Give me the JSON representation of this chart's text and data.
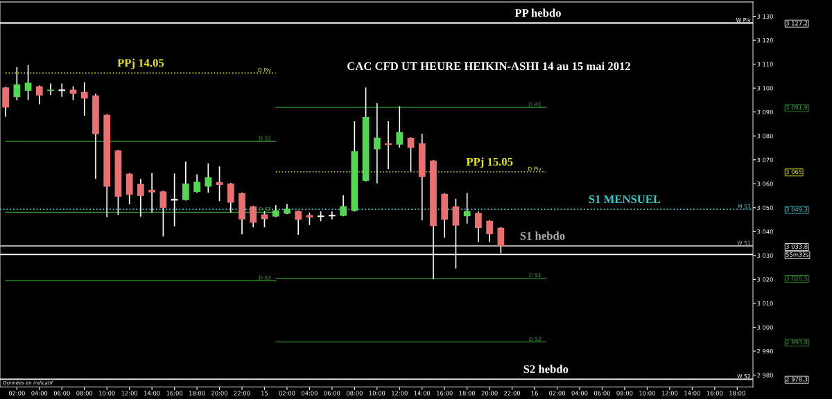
{
  "chart_data": {
    "type": "candlestick",
    "title": "CAC CFD UT HEURE HEIKIN-ASHI 14 au 15 mai 2012",
    "x": [
      "2012-05-14T01:00",
      "2012-05-14T02:00",
      "2012-05-14T03:00",
      "2012-05-14T04:00",
      "2012-05-14T05:00",
      "2012-05-14T06:00",
      "2012-05-14T07:00",
      "2012-05-14T08:00",
      "2012-05-14T09:00",
      "2012-05-14T10:00",
      "2012-05-14T11:00",
      "2012-05-14T12:00",
      "2012-05-14T13:00",
      "2012-05-14T14:00",
      "2012-05-14T15:00",
      "2012-05-14T16:00",
      "2012-05-14T17:00",
      "2012-05-14T18:00",
      "2012-05-14T19:00",
      "2012-05-14T20:00",
      "2012-05-14T21:00",
      "2012-05-14T22:00",
      "2012-05-14T23:00",
      "2012-05-15T00:00",
      "2012-05-15T01:00",
      "2012-05-15T02:00",
      "2012-05-15T03:00",
      "2012-05-15T04:00",
      "2012-05-15T05:00",
      "2012-05-15T06:00",
      "2012-05-15T07:00",
      "2012-05-15T08:00",
      "2012-05-15T09:00",
      "2012-05-15T10:00",
      "2012-05-15T11:00",
      "2012-05-15T12:00",
      "2012-05-15T13:00",
      "2012-05-15T14:00",
      "2012-05-15T15:00",
      "2012-05-15T16:00",
      "2012-05-15T17:00",
      "2012-05-15T18:00",
      "2012-05-15T19:00",
      "2012-05-15T20:00",
      "2012-05-15T21:00"
    ],
    "ohlc": [
      [
        3100.3,
        3100.3,
        3088.3,
        3091.9
      ],
      [
        3096.2,
        3108.6,
        3095.2,
        3101.6
      ],
      [
        3098.9,
        3109.4,
        3095.2,
        3102.2
      ],
      [
        3100.8,
        3100.8,
        3093.5,
        3096.9
      ],
      [
        3098.8,
        3101.7,
        3097.3,
        3099.3
      ],
      [
        3099.1,
        3101.7,
        3096.6,
        3099.1
      ],
      [
        3099.3,
        3100.5,
        3095.2,
        3097.6
      ],
      [
        3098.4,
        3102.2,
        3088.7,
        3095.6
      ],
      [
        3096.9,
        3097.4,
        3062.3,
        3080.7
      ],
      [
        3088.8,
        3088.8,
        3046.3,
        3058.8
      ],
      [
        3073.9,
        3073.9,
        3047.2,
        3054.6
      ],
      [
        3064.2,
        3064.2,
        3051.6,
        3055.4
      ],
      [
        3059.9,
        3061.8,
        3046.5,
        3054.9
      ],
      [
        3057.5,
        3064.2,
        3048.1,
        3056.4
      ],
      [
        3056.8,
        3056.8,
        3038.2,
        3049.9
      ],
      [
        3053.3,
        3064.0,
        3042.5,
        3053.3
      ],
      [
        3053.2,
        3069.0,
        3053.2,
        3060.1
      ],
      [
        3056.6,
        3063.7,
        3056.5,
        3060.8
      ],
      [
        3058.8,
        3068.2,
        3056.5,
        3062.7
      ],
      [
        3060.7,
        3067.0,
        3053.0,
        3059.5
      ],
      [
        3060.1,
        3060.1,
        3048.1,
        3052.1
      ],
      [
        3056.1,
        3056.1,
        3039.1,
        3045.1
      ],
      [
        3050.5,
        3050.5,
        3042.0,
        3043.7
      ],
      [
        3047.2,
        3048.4,
        3042.0,
        3045.2
      ],
      [
        3046.3,
        3050.8,
        3046.3,
        3048.9
      ],
      [
        3047.5,
        3051.3,
        3047.5,
        3049.5
      ],
      [
        3048.6,
        3048.6,
        3038.9,
        3045.0
      ],
      [
        3046.9,
        3047.7,
        3043.0,
        3045.9
      ],
      [
        3046.4,
        3048.2,
        3044.6,
        3046.4
      ],
      [
        3046.7,
        3048.2,
        3045.3,
        3046.7
      ],
      [
        3046.6,
        3054.9,
        3046.6,
        3050.6
      ],
      [
        3048.6,
        3085.9,
        3048.6,
        3073.6
      ],
      [
        3061.2,
        3100.0,
        3061.2,
        3087.9
      ],
      [
        3074.4,
        3093.5,
        3060.4,
        3079.3
      ],
      [
        3076.9,
        3085.9,
        3066.3,
        3076.2
      ],
      [
        3076.4,
        3092.2,
        3075.4,
        3081.6
      ],
      [
        3079.2,
        3079.2,
        3065.4,
        3075.0
      ],
      [
        3076.9,
        3080.7,
        3044.9,
        3062.8
      ],
      [
        3069.7,
        3069.7,
        3020.3,
        3042.3
      ],
      [
        3055.8,
        3055.8,
        3037.7,
        3045.0
      ],
      [
        3050.5,
        3053.5,
        3024.8,
        3042.5
      ],
      [
        3046.4,
        3055.9,
        3043.6,
        3048.6
      ],
      [
        3047.8,
        3048.2,
        3035.9,
        3041.5
      ],
      [
        3044.5,
        3044.5,
        3035.9,
        3038.9
      ],
      [
        3041.6,
        3041.6,
        3031.2,
        3033.9
      ]
    ],
    "colors": [
      "#e87070",
      "#50d850",
      "#50d850",
      "#e87070",
      "#50d850",
      "#ffffff",
      "#e87070",
      "#e87070",
      "#e87070",
      "#e87070",
      "#e87070",
      "#e87070",
      "#e87070",
      "#e87070",
      "#e87070",
      "#ffffff",
      "#50d850",
      "#50d850",
      "#50d850",
      "#e87070",
      "#e87070",
      "#e87070",
      "#e87070",
      "#e87070",
      "#50d850",
      "#50d850",
      "#e87070",
      "#e87070",
      "#ffffff",
      "#ffffff",
      "#50d850",
      "#50d850",
      "#50d850",
      "#50d850",
      "#e87070",
      "#50d850",
      "#e87070",
      "#e87070",
      "#e87070",
      "#e87070",
      "#e87070",
      "#50d850",
      "#e87070",
      "#e87070",
      "#e87070"
    ],
    "series": [
      {
        "type": "line",
        "name": "D Piv",
        "color": "#e8e800",
        "line_style": "dotted",
        "x": [
          "2012-05-14T01:00",
          "2012-05-15T01:00"
        ],
        "values": [
          3106.3,
          3106.3
        ]
      },
      {
        "type": "line",
        "name": "D S1",
        "color": "#30a030",
        "line_style": "solid",
        "x": [
          "2012-05-14T01:00",
          "2012-05-15T01:00"
        ],
        "values": [
          3077.7,
          3077.7
        ]
      },
      {
        "type": "line",
        "name": "D S2",
        "color": "#30a030",
        "line_style": "solid",
        "x": [
          "2012-05-14T01:00",
          "2012-05-15T01:00"
        ],
        "values": [
          3048.1,
          3048.1
        ]
      },
      {
        "type": "line",
        "name": "D S3",
        "color": "#30a030",
        "line_style": "solid",
        "x": [
          "2012-05-14T01:00",
          "2012-05-15T01:00"
        ],
        "values": [
          3019.5,
          3019.5
        ]
      },
      {
        "type": "line",
        "name": "D R1",
        "color": "#30a030",
        "line_style": "solid",
        "x": [
          "2012-05-15T01:00",
          "2012-05-16T01:00"
        ],
        "values": [
          3091.9,
          3091.9
        ]
      },
      {
        "type": "line",
        "name": "D Piv",
        "color": "#e8e800",
        "line_style": "dotted",
        "x": [
          "2012-05-15T01:00",
          "2012-05-16T01:00"
        ],
        "values": [
          3065,
          3065
        ]
      },
      {
        "type": "line",
        "name": "D S1",
        "color": "#30a030",
        "line_style": "solid",
        "x": [
          "2012-05-15T01:00",
          "2012-05-16T01:00"
        ],
        "values": [
          3020.5,
          3020.5
        ]
      },
      {
        "type": "line",
        "name": "D S2",
        "color": "#30a030",
        "line_style": "solid",
        "x": [
          "2012-05-15T01:00",
          "2012-05-16T01:00"
        ],
        "values": [
          2993.8,
          2993.8
        ]
      }
    ],
    "ref_lines": [
      {
        "axis": "y",
        "value": 3127.2,
        "label": "W Piv",
        "color": "#ffffff",
        "line_style": "solid"
      },
      {
        "axis": "y",
        "value": 3049.3,
        "label": "M S1",
        "color": "#33cccc",
        "line_style": "dotted"
      },
      {
        "axis": "y",
        "value": 3034,
        "label": "W S1",
        "color": "#aaaaaa",
        "line_style": "solid"
      },
      {
        "axis": "y",
        "value": 3030.4,
        "label": null,
        "color": "#ffffff",
        "line_style": "solid"
      },
      {
        "axis": "y",
        "value": 2978.3,
        "label": "W S2",
        "color": "#ffffff",
        "line_style": "solid"
      }
    ],
    "annotations": [
      {
        "text": "PP hebdo",
        "x": "2012-05-16T00:18",
        "y": 3127.2
      },
      {
        "text": "PPj 14.05",
        "x": "2012-05-14T13:00",
        "y": 3106.3
      },
      {
        "text": "PPj 15.05",
        "x": "2012-05-15T20:00",
        "y": 3065
      },
      {
        "text": "S1 MENSUEL",
        "x": "2012-05-16T08:00",
        "y": 3049.3
      },
      {
        "text": "S1 hebdo",
        "x": "2012-05-16T00:42",
        "y": 3034
      },
      {
        "text": "S2 hebdo",
        "x": "2012-05-16T01:00",
        "y": 2978.3
      },
      "Données en indicatif"
    ],
    "xlim": [
      "2012-05-14T00:30",
      "2012-05-16T19:24"
    ],
    "xticks": [
      {
        "value": "2012-05-14T02:00",
        "label": "02:00"
      },
      {
        "value": "2012-05-14T04:00",
        "label": "04:00"
      },
      {
        "value": "2012-05-14T06:00",
        "label": "06:00"
      },
      {
        "value": "2012-05-14T08:00",
        "label": "08:00"
      },
      {
        "value": "2012-05-14T10:00",
        "label": "10:00"
      },
      {
        "value": "2012-05-14T12:00",
        "label": "12:00"
      },
      {
        "value": "2012-05-14T14:00",
        "label": "14:00"
      },
      {
        "value": "2012-05-14T16:00",
        "label": "16:00"
      },
      {
        "value": "2012-05-14T18:00",
        "label": "18:00"
      },
      {
        "value": "2012-05-14T20:00",
        "label": "20:00"
      },
      {
        "value": "2012-05-14T22:00",
        "label": "22:00"
      },
      {
        "value": "2012-05-15",
        "label": "15"
      },
      {
        "value": "2012-05-15T02:00",
        "label": "02:00"
      },
      {
        "value": "2012-05-15T04:00",
        "label": "04:00"
      },
      {
        "value": "2012-05-15T06:00",
        "label": "06:00"
      },
      {
        "value": "2012-05-15T08:00",
        "label": "08:00"
      },
      {
        "value": "2012-05-15T10:00",
        "label": "10:00"
      },
      {
        "value": "2012-05-15T12:00",
        "label": "12:00"
      },
      {
        "value": "2012-05-15T14:00",
        "label": "14:00"
      },
      {
        "value": "2012-05-15T16:00",
        "label": "16:00"
      },
      {
        "value": "2012-05-15T18:00",
        "label": "18:00"
      },
      {
        "value": "2012-05-15T20:00",
        "label": "20:00"
      },
      {
        "value": "2012-05-15T22:00",
        "label": "22:00"
      },
      {
        "value": "2012-05-16",
        "label": "16"
      },
      {
        "value": "2012-05-16T02:00",
        "label": "02:00"
      },
      {
        "value": "2012-05-16T04:00",
        "label": "04:00"
      },
      {
        "value": "2012-05-16T06:00",
        "label": "06:00"
      },
      {
        "value": "2012-05-16T08:00",
        "label": "08:00"
      },
      {
        "value": "2012-05-16T10:00",
        "label": "10:00"
      },
      {
        "value": "2012-05-16T12:00",
        "label": "12:00"
      },
      {
        "value": "2012-05-16T14:00",
        "label": "14:00"
      },
      {
        "value": "2012-05-16T16:00",
        "label": "16:00"
      },
      {
        "value": "2012-05-16T18:00",
        "label": "18:00"
      }
    ],
    "ylim": [
      2975,
      3136
    ],
    "yticks": [
      {
        "value": 2980,
        "label": "2 980"
      },
      {
        "value": 2990,
        "label": "2 990"
      },
      {
        "value": 3000,
        "label": "3 000"
      },
      {
        "value": 3010,
        "label": "3 010"
      },
      {
        "value": 3020,
        "label": "3 020"
      },
      {
        "value": 3030,
        "label": "3 030"
      },
      {
        "value": 3040,
        "label": "3 040"
      },
      {
        "value": 3050,
        "label": "3 050"
      },
      {
        "value": 3060,
        "label": "3 060"
      },
      {
        "value": 3070,
        "label": "3 070"
      },
      {
        "value": 3080,
        "label": "3 080"
      },
      {
        "value": 3090,
        "label": "3 090"
      },
      {
        "value": 3100,
        "label": "3 100"
      },
      {
        "value": 3110,
        "label": "3 110"
      },
      {
        "value": 3120,
        "label": "3 120"
      },
      {
        "value": 3130,
        "label": "3 130"
      }
    ],
    "y2lim": [
      2975,
      3136
    ],
    "y2ticks": [
      {
        "value": 3127.2,
        "label": "3 127,2"
      },
      {
        "value": 3091.9,
        "label": "3 091,9"
      },
      {
        "value": 3065,
        "label": "3 065"
      },
      {
        "value": 3049.3,
        "label": "3 049,3"
      },
      {
        "value": 3033.8,
        "label": "3 033,8"
      },
      {
        "value": 3030.4,
        "label": "55m32s"
      },
      {
        "value": 3020.5,
        "label": "3 020,5"
      },
      {
        "value": 2993.8,
        "label": "2 993,8"
      },
      {
        "value": 2978.3,
        "label": "2 978,3"
      }
    ]
  }
}
